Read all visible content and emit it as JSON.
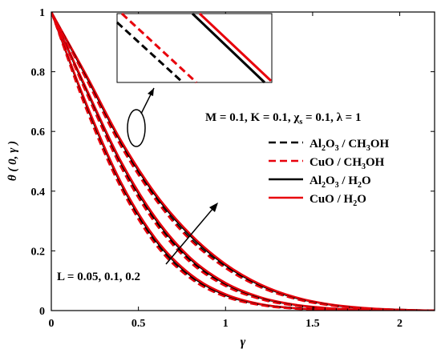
{
  "chart_data": {
    "type": "line",
    "xlabel": "γ",
    "ylabel": "θ ( 0, γ )",
    "xlim": [
      0,
      2.2
    ],
    "ylim": [
      0,
      1
    ],
    "xticks": [
      0,
      0.5,
      1,
      1.5,
      2
    ],
    "yticks": [
      0,
      0.2,
      0.4,
      0.6,
      0.8,
      1
    ],
    "xtick_labels": [
      "0",
      "0.5",
      "1",
      "1.5",
      "2"
    ],
    "ytick_labels": [
      "0",
      "0.2",
      "0.4",
      "0.6",
      "0.8",
      "1"
    ],
    "grid": false,
    "legend_position": "right-middle",
    "parameters_text": "M = 0.1, K = 0.1, χ_s = 0.1, λ = 1",
    "L_annotation": "L = 0.05, 0.1, 0.2",
    "inset": "zoom of the curves near γ ≈ 0.5, θ ≈ 0.6",
    "legend": [
      {
        "formula": [
          "Al",
          "2",
          "O",
          "3",
          " / CH",
          "3",
          "OH"
        ],
        "color": "#000000",
        "dash": "dashed"
      },
      {
        "formula": [
          "CuO / CH",
          "3",
          "OH"
        ],
        "color": "#e8000b",
        "dash": "dashed"
      },
      {
        "formula": [
          "Al",
          "2",
          "O",
          "3",
          " / H",
          "2",
          "O"
        ],
        "color": "#000000",
        "dash": "solid"
      },
      {
        "formula": [
          "CuO / H",
          "2",
          "O"
        ],
        "color": "#e8000b",
        "dash": "solid"
      }
    ],
    "x": [
      0,
      0.2,
      0.4,
      0.6,
      0.8,
      1.0,
      1.2,
      1.4,
      1.6,
      1.8,
      2.0,
      2.2
    ],
    "series": [
      {
        "fluid_index": 0,
        "L": 0.05,
        "values": [
          1,
          0.78,
          0.555,
          0.375,
          0.24,
          0.145,
          0.08,
          0.04,
          0.018,
          0.007,
          0.002,
          0
        ]
      },
      {
        "fluid_index": 1,
        "L": 0.05,
        "values": [
          1,
          0.775,
          0.55,
          0.37,
          0.235,
          0.142,
          0.078,
          0.039,
          0.017,
          0.007,
          0.002,
          0
        ]
      },
      {
        "fluid_index": 2,
        "L": 0.05,
        "values": [
          1,
          0.785,
          0.565,
          0.385,
          0.25,
          0.152,
          0.085,
          0.043,
          0.02,
          0.008,
          0.003,
          0
        ]
      },
      {
        "fluid_index": 3,
        "L": 0.05,
        "values": [
          1,
          0.79,
          0.57,
          0.39,
          0.255,
          0.156,
          0.088,
          0.045,
          0.021,
          0.009,
          0.003,
          0
        ]
      },
      {
        "fluid_index": 0,
        "L": 0.1,
        "values": [
          1,
          0.735,
          0.485,
          0.295,
          0.165,
          0.085,
          0.04,
          0.017,
          0.006,
          0.002,
          0,
          0
        ]
      },
      {
        "fluid_index": 1,
        "L": 0.1,
        "values": [
          1,
          0.73,
          0.48,
          0.29,
          0.16,
          0.082,
          0.038,
          0.016,
          0.006,
          0.002,
          0,
          0
        ]
      },
      {
        "fluid_index": 2,
        "L": 0.1,
        "values": [
          1,
          0.74,
          0.495,
          0.305,
          0.172,
          0.09,
          0.043,
          0.019,
          0.007,
          0.002,
          0,
          0
        ]
      },
      {
        "fluid_index": 3,
        "L": 0.1,
        "values": [
          1,
          0.745,
          0.5,
          0.31,
          0.176,
          0.093,
          0.045,
          0.02,
          0.008,
          0.003,
          0,
          0
        ]
      },
      {
        "fluid_index": 0,
        "L": 0.2,
        "values": [
          1,
          0.68,
          0.415,
          0.225,
          0.11,
          0.048,
          0.019,
          0.007,
          0.002,
          0,
          0,
          0
        ]
      },
      {
        "fluid_index": 1,
        "L": 0.2,
        "values": [
          1,
          0.675,
          0.41,
          0.22,
          0.107,
          0.046,
          0.018,
          0.006,
          0.002,
          0,
          0,
          0
        ]
      },
      {
        "fluid_index": 2,
        "L": 0.2,
        "values": [
          1,
          0.69,
          0.425,
          0.235,
          0.117,
          0.052,
          0.021,
          0.008,
          0.003,
          0,
          0,
          0
        ]
      },
      {
        "fluid_index": 3,
        "L": 0.2,
        "values": [
          1,
          0.695,
          0.43,
          0.24,
          0.121,
          0.055,
          0.022,
          0.008,
          0.003,
          0,
          0,
          0
        ]
      }
    ]
  }
}
